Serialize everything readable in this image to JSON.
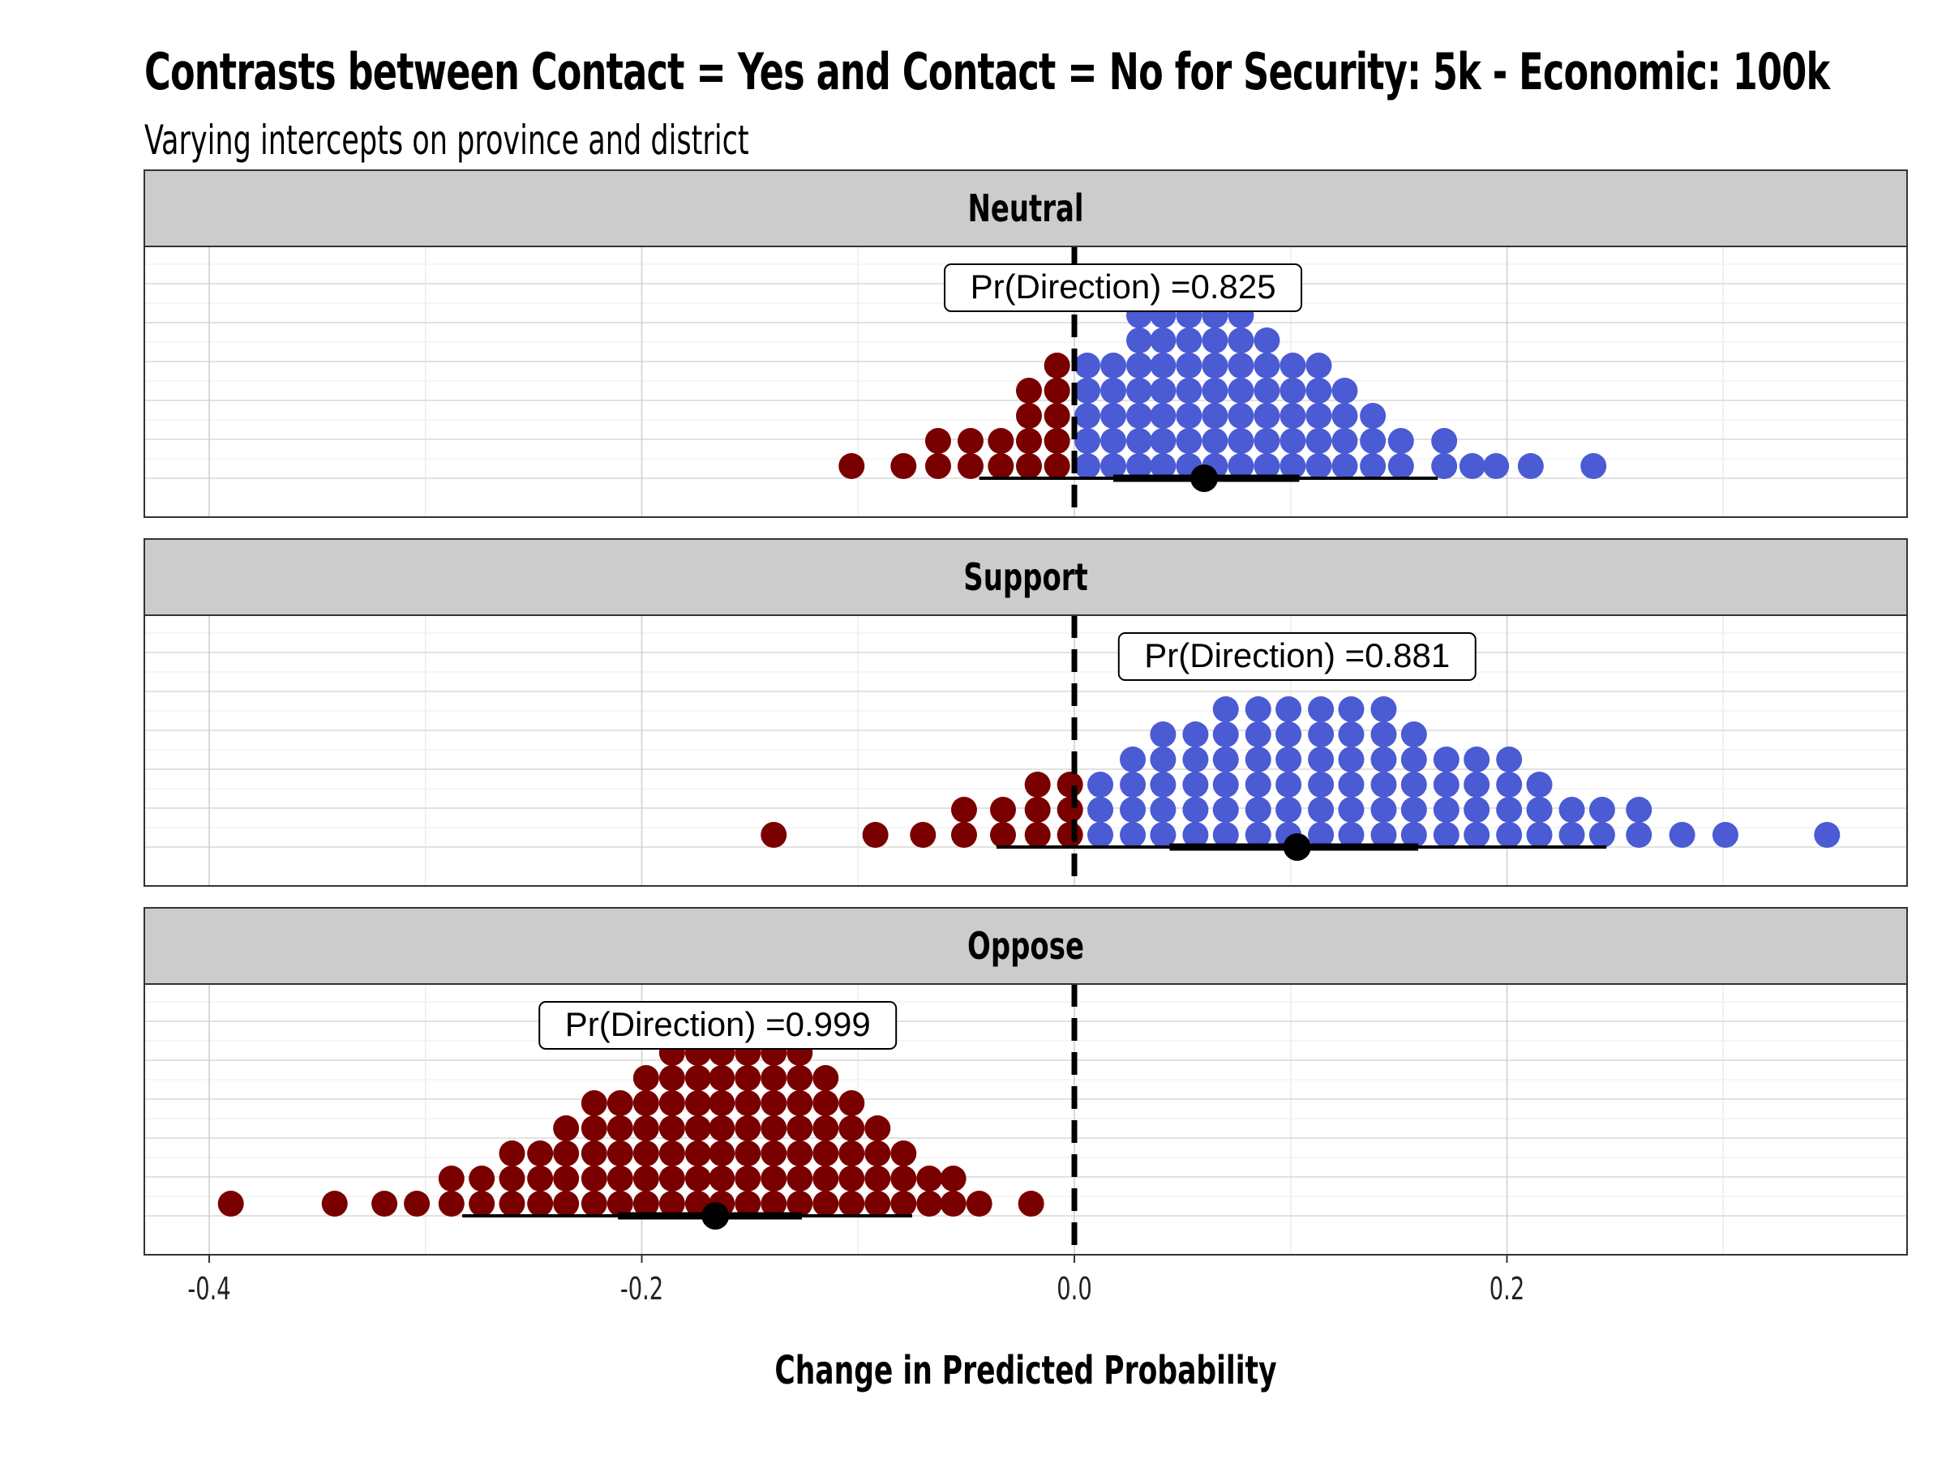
{
  "chart_data": {
    "type": "scatter",
    "title": "Contrasts between Contact = Yes and Contact = No for Security: 5k - Economic: 100k",
    "subtitle": "Varying intercepts on province and district",
    "xlabel": "Change in Predicted Probability",
    "xlim": [
      -0.43,
      0.385
    ],
    "xticks": [
      -0.4,
      -0.2,
      0.0,
      0.2
    ],
    "xtick_labels": [
      "-0.4",
      "-0.2",
      "0.0",
      "0.2"
    ],
    "reference_line": 0,
    "grid": true,
    "colors": {
      "negative": "#7a0000",
      "positive": "#4a5bd4",
      "strip": "#cccccc"
    },
    "panels": [
      {
        "label": "Neutral",
        "annotation": "Pr(Direction) =0.825",
        "median": 0.06,
        "interval_66": [
          0.018,
          0.104
        ],
        "interval_95": [
          -0.044,
          0.168
        ],
        "dots": [
          {
            "x": -0.103,
            "count": 1
          },
          {
            "x": -0.079,
            "count": 1
          },
          {
            "x": -0.063,
            "count": 2
          },
          {
            "x": -0.048,
            "count": 2
          },
          {
            "x": -0.034,
            "count": 2
          },
          {
            "x": -0.021,
            "count": 4
          },
          {
            "x": -0.008,
            "count": 5
          },
          {
            "x": 0.006,
            "count": 5
          },
          {
            "x": 0.018,
            "count": 5
          },
          {
            "x": 0.03,
            "count": 7
          },
          {
            "x": 0.041,
            "count": 7
          },
          {
            "x": 0.053,
            "count": 7
          },
          {
            "x": 0.065,
            "count": 7
          },
          {
            "x": 0.077,
            "count": 7
          },
          {
            "x": 0.089,
            "count": 6
          },
          {
            "x": 0.101,
            "count": 5
          },
          {
            "x": 0.113,
            "count": 5
          },
          {
            "x": 0.125,
            "count": 4
          },
          {
            "x": 0.138,
            "count": 3
          },
          {
            "x": 0.151,
            "count": 2
          },
          {
            "x": 0.171,
            "count": 2
          },
          {
            "x": 0.184,
            "count": 1
          },
          {
            "x": 0.195,
            "count": 1
          },
          {
            "x": 0.211,
            "count": 1
          },
          {
            "x": 0.24,
            "count": 1
          }
        ]
      },
      {
        "label": "Support",
        "annotation": "Pr(Direction) =0.881",
        "median": 0.103,
        "interval_66": [
          0.044,
          0.159
        ],
        "interval_95": [
          -0.036,
          0.246
        ],
        "dots": [
          {
            "x": -0.139,
            "count": 1
          },
          {
            "x": -0.092,
            "count": 1
          },
          {
            "x": -0.07,
            "count": 1
          },
          {
            "x": -0.051,
            "count": 2
          },
          {
            "x": -0.033,
            "count": 2
          },
          {
            "x": -0.017,
            "count": 3
          },
          {
            "x": -0.002,
            "count": 3
          },
          {
            "x": 0.012,
            "count": 3
          },
          {
            "x": 0.027,
            "count": 4
          },
          {
            "x": 0.041,
            "count": 5
          },
          {
            "x": 0.056,
            "count": 5
          },
          {
            "x": 0.07,
            "count": 6
          },
          {
            "x": 0.085,
            "count": 6
          },
          {
            "x": 0.099,
            "count": 6
          },
          {
            "x": 0.114,
            "count": 6
          },
          {
            "x": 0.128,
            "count": 6
          },
          {
            "x": 0.143,
            "count": 6
          },
          {
            "x": 0.157,
            "count": 5
          },
          {
            "x": 0.172,
            "count": 4
          },
          {
            "x": 0.186,
            "count": 4
          },
          {
            "x": 0.201,
            "count": 4
          },
          {
            "x": 0.215,
            "count": 3
          },
          {
            "x": 0.23,
            "count": 2
          },
          {
            "x": 0.244,
            "count": 2
          },
          {
            "x": 0.261,
            "count": 2
          },
          {
            "x": 0.281,
            "count": 1
          },
          {
            "x": 0.301,
            "count": 1
          },
          {
            "x": 0.348,
            "count": 1
          }
        ]
      },
      {
        "label": "Oppose",
        "annotation": "Pr(Direction) =0.999",
        "median": -0.166,
        "interval_66": [
          -0.211,
          -0.126
        ],
        "interval_95": [
          -0.283,
          -0.075
        ],
        "dots": [
          {
            "x": -0.39,
            "count": 1
          },
          {
            "x": -0.342,
            "count": 1
          },
          {
            "x": -0.319,
            "count": 1
          },
          {
            "x": -0.304,
            "count": 1
          },
          {
            "x": -0.288,
            "count": 2
          },
          {
            "x": -0.274,
            "count": 2
          },
          {
            "x": -0.26,
            "count": 3
          },
          {
            "x": -0.247,
            "count": 3
          },
          {
            "x": -0.235,
            "count": 4
          },
          {
            "x": -0.222,
            "count": 5
          },
          {
            "x": -0.21,
            "count": 5
          },
          {
            "x": -0.198,
            "count": 6
          },
          {
            "x": -0.186,
            "count": 7
          },
          {
            "x": -0.174,
            "count": 7
          },
          {
            "x": -0.163,
            "count": 7
          },
          {
            "x": -0.151,
            "count": 7
          },
          {
            "x": -0.139,
            "count": 7
          },
          {
            "x": -0.127,
            "count": 7
          },
          {
            "x": -0.115,
            "count": 6
          },
          {
            "x": -0.103,
            "count": 5
          },
          {
            "x": -0.091,
            "count": 4
          },
          {
            "x": -0.079,
            "count": 3
          },
          {
            "x": -0.067,
            "count": 2
          },
          {
            "x": -0.056,
            "count": 2
          },
          {
            "x": -0.044,
            "count": 1
          },
          {
            "x": -0.02,
            "count": 1
          }
        ]
      }
    ]
  }
}
